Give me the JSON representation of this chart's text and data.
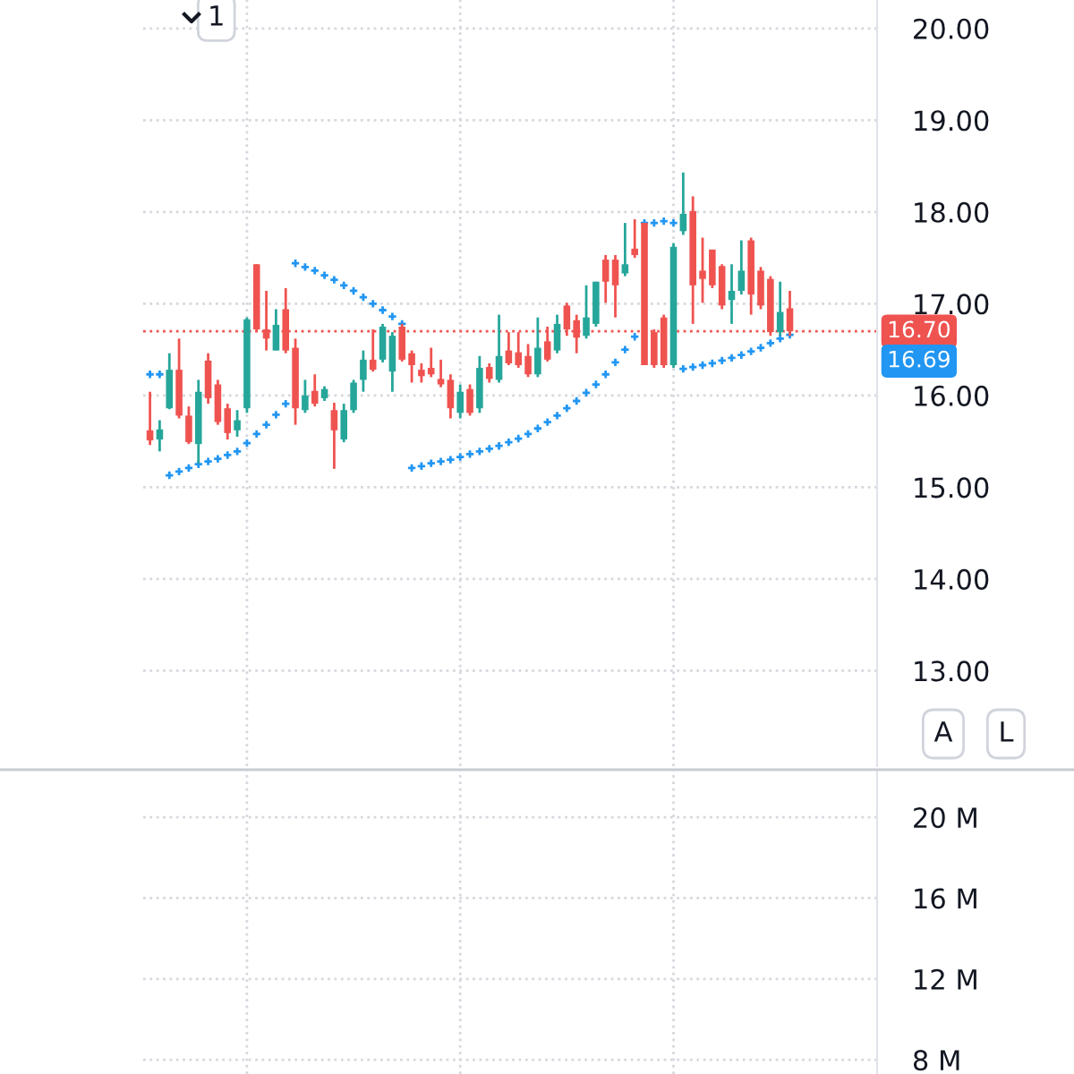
{
  "chart_data": [
    {
      "type": "candlestick",
      "categories": [
        null,
        null,
        null,
        null,
        null,
        null,
        null,
        null,
        null,
        null,
        null,
        null,
        null,
        null,
        null,
        null,
        null,
        null,
        null,
        null,
        null,
        null,
        null,
        null,
        null,
        null,
        null,
        null,
        null,
        null,
        null,
        null,
        null,
        null,
        null,
        null,
        null,
        null,
        null,
        null,
        null,
        null,
        null,
        null,
        null,
        null,
        null,
        null,
        null,
        null,
        null,
        null,
        null,
        null,
        null,
        null,
        null,
        null,
        null,
        null,
        null,
        null,
        null,
        null,
        null,
        null,
        null
      ],
      "ohlc": [
        [
          15.62,
          16.04,
          15.46,
          15.51
        ],
        [
          15.52,
          15.73,
          15.39,
          15.63
        ],
        [
          15.86,
          16.46,
          15.85,
          16.28
        ],
        [
          16.28,
          16.62,
          15.75,
          15.78
        ],
        [
          15.78,
          15.88,
          15.47,
          15.49
        ],
        [
          15.47,
          16.17,
          15.26,
          16.04
        ],
        [
          16.38,
          16.46,
          15.91,
          15.97
        ],
        [
          16.12,
          16.17,
          15.68,
          15.71
        ],
        [
          15.86,
          15.91,
          15.52,
          15.59
        ],
        [
          15.62,
          15.84,
          15.55,
          15.73
        ],
        [
          15.86,
          16.85,
          15.81,
          16.83
        ],
        [
          17.43,
          17.43,
          16.69,
          16.72
        ],
        [
          16.72,
          17.14,
          16.49,
          16.62
        ],
        [
          16.49,
          16.94,
          16.49,
          16.77
        ],
        [
          16.94,
          17.17,
          16.46,
          16.49
        ],
        [
          16.52,
          16.62,
          15.68,
          15.86
        ],
        [
          15.84,
          16.17,
          15.81,
          16.0
        ],
        [
          16.05,
          16.23,
          15.88,
          15.91
        ],
        [
          15.97,
          16.1,
          15.94,
          16.07
        ],
        [
          15.84,
          15.92,
          15.2,
          15.62
        ],
        [
          15.52,
          15.91,
          15.49,
          15.84
        ],
        [
          15.84,
          16.17,
          15.81,
          16.14
        ],
        [
          16.17,
          16.49,
          16.04,
          16.39
        ],
        [
          16.39,
          16.72,
          16.26,
          16.28
        ],
        [
          16.39,
          16.78,
          16.36,
          16.75
        ],
        [
          16.26,
          16.69,
          16.04,
          16.65
        ],
        [
          16.75,
          16.78,
          16.37,
          16.39
        ],
        [
          16.46,
          16.49,
          16.14,
          16.33
        ],
        [
          16.28,
          16.35,
          16.14,
          16.21
        ],
        [
          16.3,
          16.52,
          16.2,
          16.23
        ],
        [
          16.18,
          16.39,
          16.09,
          16.12
        ],
        [
          16.17,
          16.23,
          15.75,
          15.86
        ],
        [
          15.81,
          16.12,
          15.75,
          16.04
        ],
        [
          16.07,
          16.12,
          15.78,
          15.81
        ],
        [
          15.86,
          16.43,
          15.81,
          16.3
        ],
        [
          16.31,
          16.35,
          16.14,
          16.18
        ],
        [
          16.17,
          16.88,
          16.14,
          16.43
        ],
        [
          16.49,
          16.69,
          16.33,
          16.35
        ],
        [
          16.47,
          16.69,
          16.3,
          16.33
        ],
        [
          16.43,
          16.56,
          16.2,
          16.23
        ],
        [
          16.23,
          16.85,
          16.2,
          16.52
        ],
        [
          16.59,
          16.75,
          16.37,
          16.39
        ],
        [
          16.49,
          16.88,
          16.46,
          16.78
        ],
        [
          16.98,
          17.01,
          16.65,
          16.72
        ],
        [
          16.82,
          16.88,
          16.46,
          16.63
        ],
        [
          16.65,
          17.2,
          16.62,
          16.85
        ],
        [
          16.78,
          17.24,
          16.75,
          17.24
        ],
        [
          17.48,
          17.53,
          17.01,
          17.24
        ],
        [
          17.48,
          17.53,
          16.85,
          17.2
        ],
        [
          17.33,
          17.88,
          17.3,
          17.43
        ],
        [
          17.6,
          17.92,
          17.5,
          17.53
        ],
        [
          17.88,
          17.88,
          16.33,
          16.33
        ],
        [
          16.69,
          16.72,
          16.3,
          16.33
        ],
        [
          16.85,
          16.88,
          16.3,
          16.33
        ],
        [
          16.33,
          17.66,
          16.3,
          17.62
        ],
        [
          17.79,
          18.43,
          17.75,
          17.98
        ],
        [
          18.01,
          18.17,
          16.78,
          17.2
        ],
        [
          17.36,
          17.72,
          17.01,
          17.27
        ],
        [
          17.59,
          17.59,
          17.17,
          17.2
        ],
        [
          17.41,
          17.43,
          16.94,
          16.98
        ],
        [
          17.04,
          17.43,
          16.78,
          17.14
        ],
        [
          17.14,
          17.69,
          17.1,
          17.36
        ],
        [
          17.69,
          17.72,
          16.88,
          17.1
        ],
        [
          17.36,
          17.4,
          16.94,
          16.98
        ],
        [
          17.27,
          17.3,
          16.65,
          16.69
        ],
        [
          16.69,
          17.24,
          16.65,
          16.91
        ],
        [
          16.95,
          17.14,
          16.65,
          16.7
        ]
      ],
      "colors": [
        "#ef5350",
        "#26a69a",
        "#26a69a",
        "#ef5350",
        "#ef5350",
        "#26a69a",
        "#ef5350",
        "#ef5350",
        "#ef5350",
        "#26a69a",
        "#26a69a",
        "#ef5350",
        "#ef5350",
        "#26a69a",
        "#ef5350",
        "#ef5350",
        "#26a69a",
        "#ef5350",
        "#26a69a",
        "#ef5350",
        "#26a69a",
        "#26a69a",
        "#26a69a",
        "#ef5350",
        "#26a69a",
        "#26a69a",
        "#ef5350",
        "#ef5350",
        "#ef5350",
        "#ef5350",
        "#ef5350",
        "#ef5350",
        "#26a69a",
        "#ef5350",
        "#26a69a",
        "#ef5350",
        "#26a69a",
        "#ef5350",
        "#ef5350",
        "#ef5350",
        "#26a69a",
        "#ef5350",
        "#26a69a",
        "#ef5350",
        "#ef5350",
        "#26a69a",
        "#26a69a",
        "#ef5350",
        "#ef5350",
        "#26a69a",
        "#ef5350",
        "#ef5350",
        "#ef5350",
        "#ef5350",
        "#26a69a",
        "#26a69a",
        "#ef5350",
        "#ef5350",
        "#ef5350",
        "#ef5350",
        "#26a69a",
        "#26a69a",
        "#ef5350",
        "#ef5350",
        "#ef5350",
        "#26a69a",
        "#ef5350"
      ],
      "series": [
        {
          "type": "scatter",
          "color": "#2196f3",
          "marker": "cross",
          "values": [
            16.23,
            16.23,
            15.13,
            15.17,
            15.21,
            15.25,
            15.28,
            15.31,
            15.35,
            15.39,
            15.48,
            15.58,
            15.68,
            15.79,
            15.91,
            17.44,
            17.4,
            17.36,
            17.31,
            17.26,
            17.2,
            17.14,
            17.07,
            17.0,
            16.93,
            16.86,
            16.78,
            15.21,
            15.23,
            15.26,
            15.28,
            15.3,
            15.33,
            15.36,
            15.39,
            15.42,
            15.45,
            15.49,
            15.53,
            15.58,
            15.64,
            15.71,
            15.78,
            15.86,
            15.94,
            16.03,
            16.12,
            16.23,
            16.36,
            16.5,
            16.64,
            17.88,
            17.88,
            17.9,
            17.88,
            16.29,
            16.31,
            16.33,
            16.35,
            16.38,
            16.41,
            16.44,
            16.48,
            16.52,
            16.57,
            16.62,
            16.66
          ]
        }
      ],
      "ylim": [
        11.96,
        20.31
      ],
      "yticks": [
        {
          "value": 13,
          "label": "13.00"
        },
        {
          "value": 14,
          "label": "14.00"
        },
        {
          "value": 15,
          "label": "15.00"
        },
        {
          "value": 16,
          "label": "16.00"
        },
        {
          "value": 17,
          "label": "17.00"
        },
        {
          "value": 18,
          "label": "18.00"
        },
        {
          "value": 19,
          "label": "19.00"
        },
        {
          "value": 20,
          "label": "20.00"
        }
      ],
      "ref_lines": [
        {
          "axis": "y",
          "value": 16.7,
          "label": "16.70",
          "color": "#ef5350",
          "line_style": "dotted"
        }
      ],
      "annotations": [
        "16.69",
        "1",
        "A",
        "L"
      ],
      "tick_labels": "y",
      "grid": true,
      "legend": false
    },
    {
      "type": "bar",
      "categories": [
        null,
        null,
        null,
        null,
        null,
        null,
        null,
        null,
        null,
        null,
        null,
        null,
        null,
        null,
        null,
        null,
        null,
        null,
        null,
        null,
        null,
        null,
        null,
        null,
        null,
        null,
        null,
        null,
        null,
        null,
        null,
        null,
        null,
        null,
        null,
        null,
        null,
        null,
        null,
        null,
        null,
        null,
        null,
        null,
        null,
        null,
        null,
        null,
        null,
        null,
        null,
        null,
        null,
        null,
        null,
        null,
        null,
        null,
        null,
        null,
        null,
        null,
        null,
        null,
        null,
        null,
        null
      ],
      "values": [
        null,
        null,
        null,
        null,
        null,
        null,
        null,
        null,
        null,
        null,
        null,
        null,
        null,
        null,
        null,
        null,
        null,
        null,
        null,
        null,
        null,
        null,
        null,
        null,
        null,
        null,
        null,
        null,
        null,
        null,
        null,
        null,
        null,
        null,
        null,
        null,
        null,
        null,
        null,
        null,
        null,
        null,
        null,
        null,
        null,
        null,
        null,
        null,
        null,
        null,
        null,
        null,
        null,
        null,
        null,
        null,
        null,
        null,
        null,
        null,
        null,
        null,
        null,
        null,
        null,
        null,
        null
      ],
      "ylim": [
        7.3,
        22.35
      ],
      "yticks": [
        {
          "value": 8,
          "label": "8 M"
        },
        {
          "value": 12,
          "label": "12 M"
        },
        {
          "value": 16,
          "label": "16 M"
        },
        {
          "value": 20,
          "label": "20 M"
        }
      ],
      "tick_labels": "y",
      "grid": true
    }
  ]
}
